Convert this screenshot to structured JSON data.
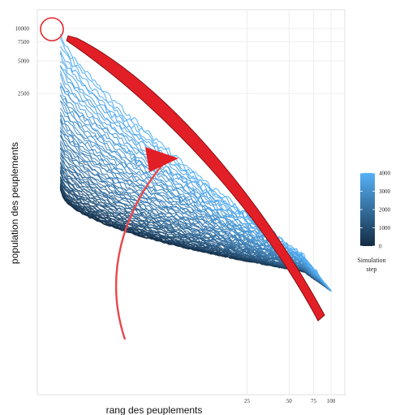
{
  "chart_data": {
    "type": "line",
    "xlabel": "rang des peuplements",
    "ylabel": "population des peuplements",
    "x_scale": "log",
    "y_scale": "log",
    "x_ticks": [
      25,
      50,
      75,
      100
    ],
    "y_ticks": [
      2500,
      5000,
      7500,
      10000
    ],
    "xlim": [
      1,
      100
    ],
    "ylim": [
      30,
      10000
    ],
    "grid": true,
    "legend": {
      "title_lines": [
        "Simulation",
        "step"
      ],
      "ticks": [
        0,
        1000,
        2000,
        3000,
        4000
      ],
      "range": [
        0,
        4000
      ],
      "placement": "right",
      "color_low": "#132b43",
      "color_high": "#56b1f7"
    },
    "series_description": "one rank-size curve per simulation step, colored from dark navy (step 0) to light blue (step 4000)",
    "series": [
      {
        "step": 0,
        "x": [
          1,
          100
        ],
        "y": [
          330,
          38
        ]
      },
      {
        "step": 4000,
        "x": [
          1,
          100
        ],
        "y": [
          8600,
          38
        ]
      }
    ],
    "annotations": [
      {
        "kind": "circle",
        "target": "top-left corner of the curves",
        "color": "#e8202a"
      },
      {
        "kind": "curved-arrow",
        "meaning": "curves rising over simulation steps",
        "color": "#e8202a"
      },
      {
        "kind": "band",
        "meaning": "upper envelope of the curves",
        "color": "#e8202a"
      }
    ]
  }
}
